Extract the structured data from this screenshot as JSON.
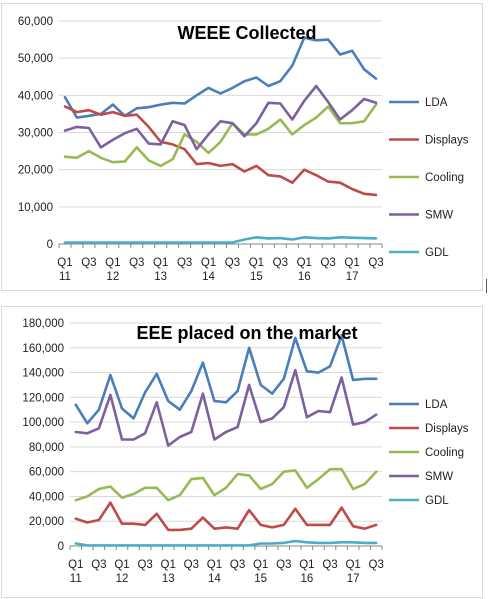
{
  "chart_data": [
    {
      "type": "line",
      "title": "WEEE Collected",
      "xlabel": "",
      "ylabel": "",
      "ylim": [
        0,
        60000
      ],
      "yticks": [
        "0",
        "10,000",
        "20,000",
        "30,000",
        "40,000",
        "50,000",
        "60,000"
      ],
      "xtick_top": [
        "Q1",
        "Q3",
        "Q1",
        "Q3",
        "Q1",
        "Q3",
        "Q1",
        "Q3",
        "Q1",
        "Q3",
        "Q1",
        "Q3",
        "Q1",
        "Q3"
      ],
      "xtick_bottom": [
        "11",
        "12",
        "13",
        "14",
        "15",
        "16",
        "17"
      ],
      "grid": true,
      "legend_position": "right",
      "x": [
        "2011 Q1",
        "2011 Q2",
        "2011 Q3",
        "2011 Q4",
        "2012 Q1",
        "2012 Q2",
        "2012 Q3",
        "2012 Q4",
        "2013 Q1",
        "2013 Q2",
        "2013 Q3",
        "2013 Q4",
        "2014 Q1",
        "2014 Q2",
        "2014 Q3",
        "2014 Q4",
        "2015 Q1",
        "2015 Q2",
        "2015 Q3",
        "2015 Q4",
        "2016 Q1",
        "2016 Q2",
        "2016 Q3",
        "2016 Q4",
        "2017 Q1",
        "2017 Q2",
        "2017 Q3"
      ],
      "series": [
        {
          "name": "LDA",
          "color": "#4a7ebb",
          "values": [
            39500,
            34000,
            34500,
            35000,
            37500,
            34500,
            36500,
            36800,
            37500,
            38000,
            37800,
            40000,
            42000,
            40500,
            42000,
            43800,
            44800,
            42500,
            43800,
            48000,
            55500,
            54800,
            55000,
            51000,
            52000,
            47000,
            44500
          ]
        },
        {
          "name": "Displays",
          "color": "#be4b48",
          "values": [
            37000,
            35500,
            36000,
            34800,
            35500,
            34500,
            34800,
            31500,
            27500,
            26800,
            25500,
            21500,
            21800,
            21000,
            21500,
            19500,
            21000,
            18500,
            18200,
            16500,
            20000,
            18500,
            16800,
            16500,
            14800,
            13500,
            13200
          ]
        },
        {
          "name": "Cooling",
          "color": "#98b954",
          "values": [
            23500,
            23200,
            25000,
            23200,
            22000,
            22200,
            26000,
            22500,
            21000,
            22800,
            29500,
            27500,
            24500,
            27500,
            32500,
            29500,
            29500,
            31000,
            33500,
            29500,
            32000,
            34000,
            37000,
            32500,
            32500,
            33000,
            37500
          ]
        },
        {
          "name": "SMW",
          "color": "#7d60a0",
          "values": [
            30500,
            31500,
            31200,
            26000,
            28000,
            29800,
            31000,
            27000,
            26800,
            33000,
            32000,
            25500,
            29500,
            33000,
            32500,
            29000,
            32500,
            38000,
            37800,
            33500,
            38500,
            42500,
            38200,
            33500,
            36000,
            39000,
            38000
          ]
        },
        {
          "name": "GDL",
          "color": "#4bacc6",
          "values": [
            400,
            400,
            400,
            400,
            400,
            400,
            400,
            400,
            400,
            400,
            400,
            400,
            400,
            400,
            400,
            1200,
            1800,
            1500,
            1600,
            1200,
            1800,
            1600,
            1500,
            1800,
            1700,
            1600,
            1500
          ]
        }
      ]
    },
    {
      "type": "line",
      "title": "EEE placed on the market",
      "xlabel": "",
      "ylabel": "",
      "ylim": [
        0,
        180000
      ],
      "yticks": [
        "0",
        "20,000",
        "40,000",
        "60,000",
        "80,000",
        "100,000",
        "120,000",
        "140,000",
        "160,000",
        "180,000"
      ],
      "xtick_top": [
        "Q1",
        "Q3",
        "Q1",
        "Q3",
        "Q1",
        "Q3",
        "Q1",
        "Q3",
        "Q1",
        "Q3",
        "Q1",
        "Q3",
        "Q1",
        "Q3"
      ],
      "xtick_bottom": [
        "11",
        "12",
        "13",
        "14",
        "15",
        "16",
        "17"
      ],
      "grid": true,
      "legend_position": "right",
      "x": [
        "2011 Q1",
        "2011 Q2",
        "2011 Q3",
        "2011 Q4",
        "2012 Q1",
        "2012 Q2",
        "2012 Q3",
        "2012 Q4",
        "2013 Q1",
        "2013 Q2",
        "2013 Q3",
        "2013 Q4",
        "2014 Q1",
        "2014 Q2",
        "2014 Q3",
        "2014 Q4",
        "2015 Q1",
        "2015 Q2",
        "2015 Q3",
        "2015 Q4",
        "2016 Q1",
        "2016 Q2",
        "2016 Q3",
        "2016 Q4",
        "2017 Q1",
        "2017 Q2",
        "2017 Q3"
      ],
      "series": [
        {
          "name": "LDA",
          "color": "#4a7ebb",
          "values": [
            114000,
            99000,
            110000,
            138000,
            111000,
            103000,
            124000,
            139000,
            117000,
            110000,
            125000,
            148000,
            117000,
            116000,
            125000,
            160000,
            130000,
            123000,
            135000,
            168000,
            141000,
            140000,
            145000,
            170000,
            134000,
            135000,
            135000
          ]
        },
        {
          "name": "Displays",
          "color": "#be4b48",
          "values": [
            22000,
            19000,
            21000,
            35000,
            18000,
            18000,
            17000,
            26000,
            13000,
            13000,
            14000,
            23000,
            14000,
            15000,
            14000,
            29000,
            17000,
            15000,
            17000,
            30000,
            17000,
            17000,
            17000,
            31000,
            16000,
            14000,
            17000
          ]
        },
        {
          "name": "Cooling",
          "color": "#98b954",
          "values": [
            37000,
            40000,
            46000,
            48000,
            39000,
            42000,
            47000,
            47000,
            37000,
            41000,
            54000,
            55000,
            41000,
            47000,
            58000,
            57000,
            46000,
            50000,
            60000,
            61000,
            47000,
            54000,
            62000,
            62000,
            46000,
            50000,
            60000
          ]
        },
        {
          "name": "SMW",
          "color": "#7d60a0",
          "values": [
            92000,
            91000,
            95000,
            122000,
            86000,
            86000,
            91000,
            116000,
            81000,
            88000,
            92000,
            123000,
            86000,
            92000,
            96000,
            130000,
            100000,
            103000,
            112000,
            142000,
            104000,
            109000,
            108000,
            136000,
            98000,
            100000,
            106000
          ]
        },
        {
          "name": "GDL",
          "color": "#4bacc6",
          "values": [
            2000,
            500,
            500,
            500,
            500,
            500,
            500,
            500,
            500,
            500,
            500,
            500,
            500,
            500,
            500,
            500,
            2000,
            2000,
            2500,
            4000,
            3000,
            2500,
            2500,
            3000,
            3000,
            2500,
            2500
          ]
        }
      ]
    }
  ]
}
